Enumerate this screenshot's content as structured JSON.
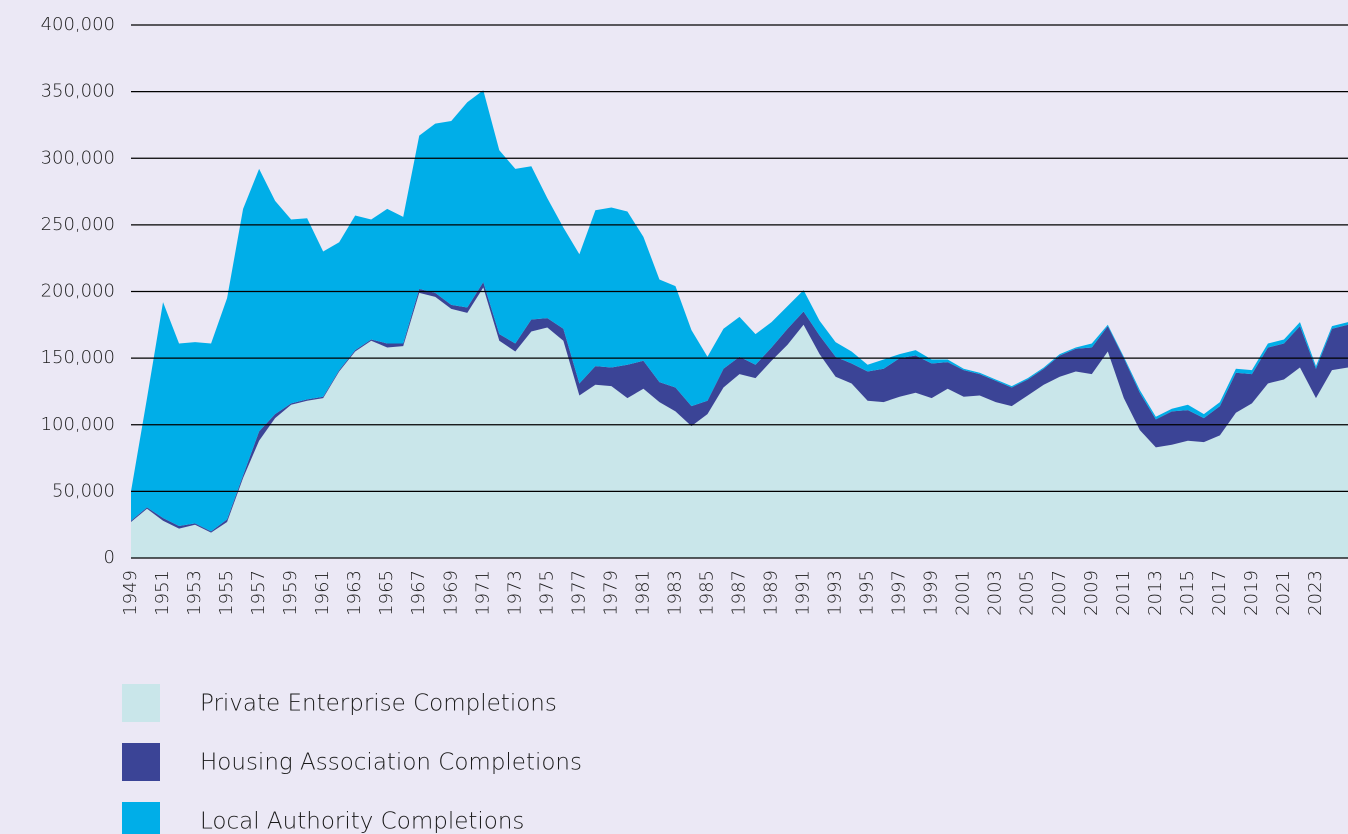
{
  "chart_data": {
    "type": "stacked_area",
    "categories": [
      "1949",
      null,
      "1951",
      null,
      "1953",
      null,
      "1955",
      null,
      "1957",
      null,
      "1959",
      null,
      "1961",
      null,
      "1963",
      null,
      "1965",
      null,
      "1967",
      null,
      "1969",
      null,
      "1971",
      null,
      "1973",
      null,
      "1975",
      null,
      "1977",
      null,
      "1979",
      null,
      "1981",
      null,
      "1983",
      null,
      "1985",
      null,
      "1987",
      null,
      "1989",
      null,
      "1991",
      null,
      "1993",
      null,
      "1995",
      null,
      "1997",
      null,
      "1999",
      null,
      "2001",
      null,
      "2003",
      null,
      "2005",
      null,
      "2007",
      null,
      "2009",
      null,
      "2011",
      null,
      "2013",
      null,
      "2015",
      null,
      "2017",
      null,
      "2019",
      null,
      "2021",
      null,
      "2023",
      null,
      null
    ],
    "series": [
      {
        "name": "Private Enterprise Completions",
        "color": "#c9e6ea",
        "values": [
          27000,
          37000,
          28000,
          22000,
          25000,
          19000,
          27000,
          60000,
          88000,
          105000,
          115000,
          118000,
          120000,
          140000,
          155000,
          163000,
          158000,
          159000,
          199000,
          196000,
          187000,
          184000,
          203000,
          163000,
          155000,
          170000,
          173000,
          163000,
          122000,
          130000,
          129000,
          120000,
          127000,
          117000,
          110000,
          99000,
          108000,
          128000,
          138000,
          135000,
          148000,
          160000,
          175000,
          153000,
          136000,
          131000,
          118000,
          117000,
          121000,
          124000,
          120000,
          127000,
          121000,
          122000,
          117000,
          114000,
          122000,
          130000,
          136000,
          140000,
          138000,
          155000,
          120000,
          96000,
          83000,
          85000,
          88000,
          87000,
          92000,
          109000,
          116000,
          131000,
          134000,
          143000,
          120000,
          141000,
          143000
        ]
      },
      {
        "name": "Housing Association Completions",
        "color": "#3b4496",
        "values": [
          1000,
          1000,
          2000,
          2000,
          1000,
          1000,
          2000,
          2000,
          7000,
          3000,
          1000,
          1000,
          1000,
          1000,
          1000,
          1000,
          3000,
          2000,
          3000,
          3000,
          3000,
          4000,
          4000,
          5000,
          6000,
          9000,
          7000,
          9000,
          9000,
          14000,
          14000,
          25000,
          21000,
          15000,
          18000,
          15000,
          10000,
          14000,
          13000,
          10000,
          10000,
          12000,
          10000,
          14000,
          15000,
          15000,
          22000,
          25000,
          29000,
          28000,
          26000,
          20000,
          20000,
          16000,
          16000,
          14000,
          12000,
          12000,
          16000,
          17000,
          20000,
          19000,
          30000,
          28000,
          21000,
          25000,
          23000,
          18000,
          22000,
          30000,
          22000,
          27000,
          27000,
          31000,
          22000,
          31000,
          32000
        ]
      },
      {
        "name": "Local Authority Completions",
        "color": "#00aee8",
        "values": [
          22000,
          82000,
          162000,
          137000,
          136000,
          141000,
          166000,
          200000,
          197000,
          160000,
          138000,
          136000,
          109000,
          96000,
          101000,
          90000,
          101000,
          95000,
          115000,
          127000,
          138000,
          154000,
          144000,
          138000,
          131000,
          115000,
          90000,
          76000,
          97000,
          117000,
          120000,
          115000,
          93000,
          77000,
          76000,
          57000,
          33000,
          30000,
          30000,
          23000,
          19000,
          17000,
          16000,
          11000,
          11000,
          9000,
          5000,
          7000,
          3000,
          4000,
          3000,
          2000,
          1000,
          1000,
          1000,
          1000,
          1000,
          1000,
          1000,
          1000,
          3000,
          1000,
          1000,
          2000,
          2000,
          2000,
          4000,
          3000,
          3000,
          3000,
          3000,
          3000,
          3000,
          3000,
          2000,
          2000,
          2000
        ]
      }
    ],
    "ylim": [
      0,
      400000
    ],
    "yticks": [
      0,
      {
        "value": 50000,
        "label": "50,000"
      },
      {
        "value": 100000,
        "label": "100,000"
      },
      {
        "value": 150000,
        "label": "150,000"
      },
      {
        "value": 200000,
        "label": "200,000"
      },
      {
        "value": 250000,
        "label": "250,000"
      },
      {
        "value": 300000,
        "label": "300,000"
      },
      {
        "value": 350000,
        "label": "350,000"
      },
      {
        "value": 400000,
        "label": "400,000"
      }
    ],
    "grid": true
  }
}
